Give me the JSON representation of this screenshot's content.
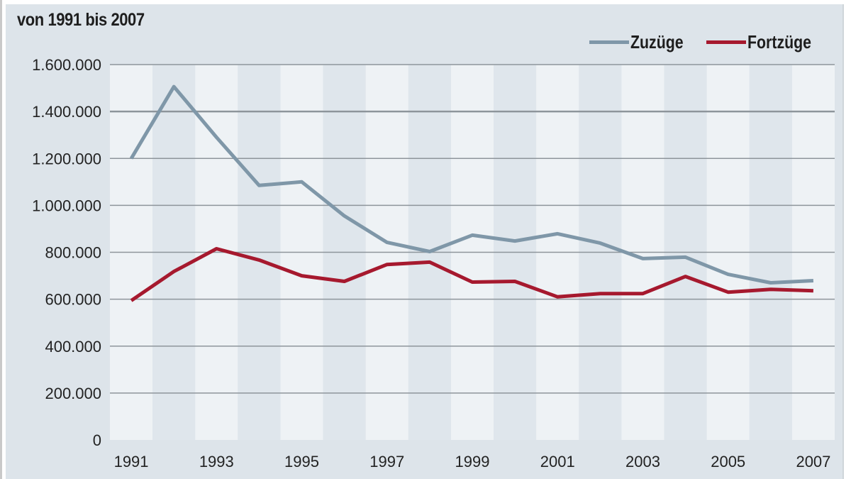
{
  "chart_data": {
    "type": "line",
    "title": "",
    "subtitle": "von 1991 bis 2007",
    "xlabel": "",
    "ylabel": "",
    "x": [
      1991,
      1992,
      1993,
      1994,
      1995,
      1996,
      1997,
      1998,
      1999,
      2000,
      2001,
      2002,
      2003,
      2004,
      2005,
      2006,
      2007
    ],
    "x_tick_labels": [
      "1991",
      "1993",
      "1995",
      "1997",
      "1999",
      "2001",
      "2003",
      "2005",
      "2007"
    ],
    "y_tick_labels": [
      "0",
      "200.000",
      "400.000",
      "600.000",
      "800.000",
      "1.000.000",
      "1.200.000",
      "1.400.000",
      "1.600.000"
    ],
    "ylim": [
      0,
      1600000
    ],
    "grid": true,
    "legend_position": "top-right",
    "series": [
      {
        "name": "Zuzüge",
        "color": "#7f97a8",
        "values": [
          1200000,
          1506000,
          1290000,
          1085000,
          1100000,
          955000,
          842000,
          803000,
          873000,
          848000,
          879000,
          839000,
          773000,
          779000,
          706000,
          670000,
          679000
        ]
      },
      {
        "name": "Fortzüge",
        "color": "#a6192e",
        "values": [
          594000,
          718000,
          815000,
          767000,
          700000,
          676000,
          748000,
          758000,
          673000,
          676000,
          610000,
          624000,
          624000,
          697000,
          630000,
          642000,
          636000
        ]
      }
    ]
  },
  "header": {
    "subtitle": "von 1991 bis 2007"
  },
  "legend": [
    {
      "label": "Zuzüge",
      "color": "#7f97a8"
    },
    {
      "label": "Fortzüge",
      "color": "#a6192e"
    }
  ],
  "colors": {
    "panel_bg": "#dde4ea",
    "column_light": "#eef2f5",
    "column_dark": "#dfe6ec",
    "gridline": "#8e959b"
  }
}
